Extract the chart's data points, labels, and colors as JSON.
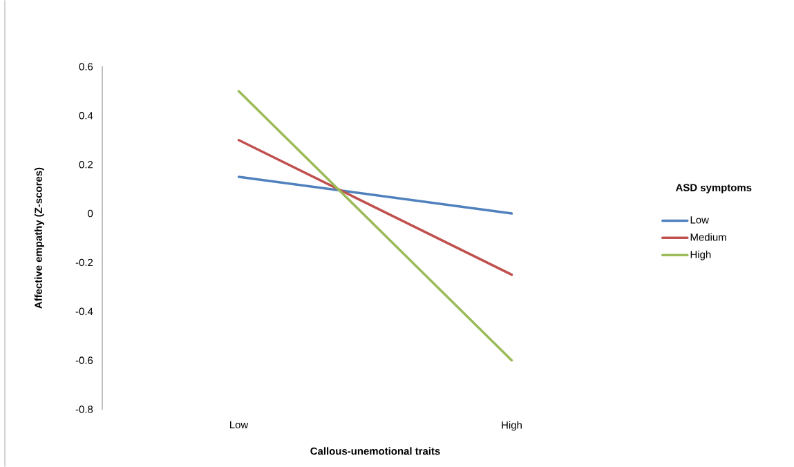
{
  "chart_data": {
    "type": "line",
    "xlabel": "Callous-unemotional traits",
    "ylabel": "Affective empathy (Z-scores)",
    "legend_title": "ASD symptoms",
    "categories": [
      "Low",
      "High"
    ],
    "series": [
      {
        "name": "Low",
        "color": "#4f81bd",
        "values": [
          0.15,
          0.0
        ]
      },
      {
        "name": "Medium",
        "color": "#c0504d",
        "values": [
          0.3,
          -0.25
        ]
      },
      {
        "name": "High",
        "color": "#9bbb59",
        "values": [
          0.5,
          -0.6
        ]
      }
    ],
    "ylim": [
      -0.8,
      0.6
    ],
    "yticks": [
      {
        "value": -0.8,
        "label": "-0.8"
      },
      {
        "value": -0.6,
        "label": "-0.6"
      },
      {
        "value": -0.4,
        "label": "-0.4"
      },
      {
        "value": -0.2,
        "label": "-0.2"
      },
      {
        "value": 0,
        "label": "0"
      },
      {
        "value": 0.2,
        "label": "0.2"
      },
      {
        "value": 0.4,
        "label": "0.4"
      },
      {
        "value": 0.6,
        "label": "0.6"
      }
    ],
    "grid": false,
    "legend": "right",
    "marker": "none",
    "line_style": "solid"
  }
}
